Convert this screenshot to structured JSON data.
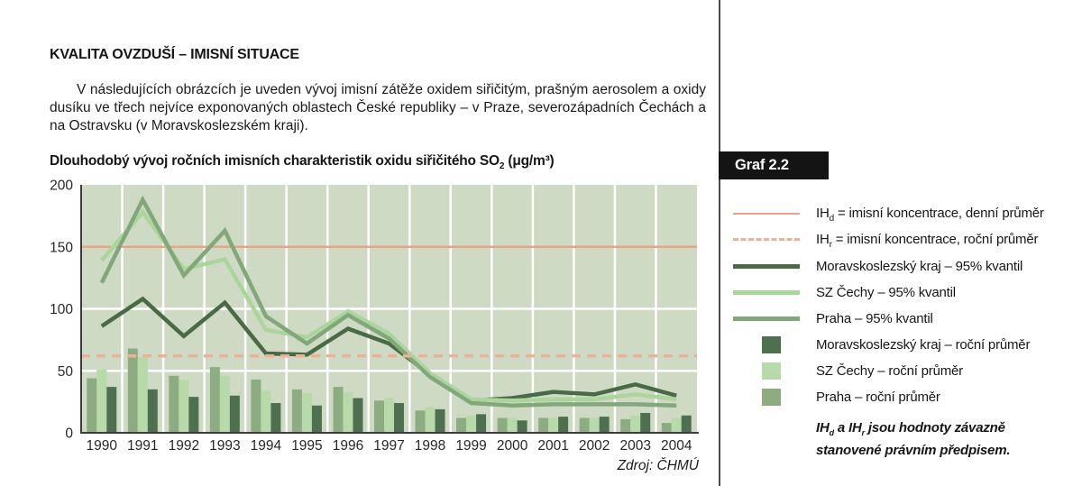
{
  "page": {
    "section_title": "KVALITA OVZDUŠÍ – IMISNÍ SITUACE",
    "intro": "V následujících obrázcích je uveden vývoj imisní zátěže oxidem siřičitým, prašným aerosolem a oxidy dusíku ve třech nejvíce exponovaných oblastech České republiky – v Praze, severozápadních Čechách a na Ostravsku (v Moravskoslezském kraji).",
    "graph_label": "Graf 2.2",
    "source": "Zdroj: ČHMÚ"
  },
  "chart_data": {
    "type": "combo-bar-line",
    "title_prefix": "Dlouhodobý vývoj ročních imisních charakteristik oxidu siřičitého SO",
    "title_sub": "2",
    "title_suffix": " (μg/m³)",
    "categories": [
      "1990",
      "1991",
      "1992",
      "1993",
      "1994",
      "1995",
      "1996",
      "1997",
      "1998",
      "1999",
      "2000",
      "2001",
      "2002",
      "2003",
      "2004"
    ],
    "ylim": [
      0,
      200
    ],
    "yticks": [
      0,
      50,
      100,
      150,
      200
    ],
    "grid": true,
    "plot_bg": "#cfdac5",
    "grid_color": "#ffffff",
    "axis_color": "#3c3c3c",
    "reference_lines": [
      {
        "name": "IHd = imisní koncentrace, denní průměr",
        "value": 150,
        "style": "solid",
        "color": "#e9a385"
      },
      {
        "name": "IHr = imisní koncentrace, roční průměr",
        "value": 62,
        "style": "dashed",
        "color": "#ecb299"
      }
    ],
    "line_series": [
      {
        "name": "Moravskoslezský kraj – 95% kvantil",
        "color": "#4a6a45",
        "values": [
          86,
          108,
          78,
          105,
          64,
          63,
          84,
          72,
          47,
          26,
          28,
          33,
          31,
          39,
          30
        ]
      },
      {
        "name": "SZ Čechy – 95% kvantil",
        "color": "#abd59d",
        "values": [
          139,
          178,
          132,
          140,
          83,
          77,
          98,
          80,
          48,
          27,
          26,
          27,
          27,
          31,
          27
        ]
      },
      {
        "name": "Praha – 95% kvantil",
        "color": "#82a77a",
        "values": [
          121,
          188,
          127,
          163,
          94,
          72,
          95,
          76,
          45,
          24,
          22,
          23,
          23,
          23,
          22
        ]
      }
    ],
    "bar_series": [
      {
        "name": "Praha – roční průměr",
        "color": "#8dac81",
        "values": [
          44,
          68,
          46,
          53,
          43,
          35,
          37,
          26,
          18,
          12,
          12,
          12,
          12,
          11,
          8
        ]
      },
      {
        "name": "SZ Čechy – roční průměr",
        "color": "#b8d9a9",
        "values": [
          51,
          61,
          43,
          46,
          34,
          32,
          33,
          28,
          21,
          14,
          12,
          12,
          12,
          14,
          12
        ]
      },
      {
        "name": "Moravskoslezský kraj – roční průměr",
        "color": "#4e7051",
        "values": [
          37,
          35,
          29,
          30,
          24,
          22,
          28,
          24,
          19,
          15,
          10,
          13,
          13,
          16,
          14
        ]
      }
    ]
  },
  "legend": {
    "items": [
      {
        "swatch": "line-thin",
        "color": "#e9a385",
        "prefix": "IH",
        "sub": "d",
        "text": " = imisní koncentrace, denní průměr"
      },
      {
        "swatch": "line-dash",
        "color": "#ecb299",
        "prefix": "IH",
        "sub": "r",
        "text": " = imisní koncentrace, roční průměr"
      },
      {
        "swatch": "line-thick",
        "color": "#4a6a45",
        "text": "Moravskoslezský kraj – 95% kvantil"
      },
      {
        "swatch": "line-thick",
        "color": "#abd59d",
        "text": "SZ Čechy – 95% kvantil"
      },
      {
        "swatch": "line-thick",
        "color": "#82a77a",
        "text": "Praha – 95% kvantil"
      },
      {
        "swatch": "square",
        "color": "#4e7051",
        "text": "Moravskoslezský kraj – roční průměr"
      },
      {
        "swatch": "square",
        "color": "#b8d9a9",
        "text": "SZ Čechy – roční průměr"
      },
      {
        "swatch": "square",
        "color": "#8dac81",
        "text": "Praha – roční průměr"
      }
    ],
    "note_parts": {
      "p1": "IH",
      "s1": "d",
      "p2": " a IH",
      "s2": "r",
      "p3": " jsou hodnoty závazně stanovené právním předpisem."
    }
  }
}
